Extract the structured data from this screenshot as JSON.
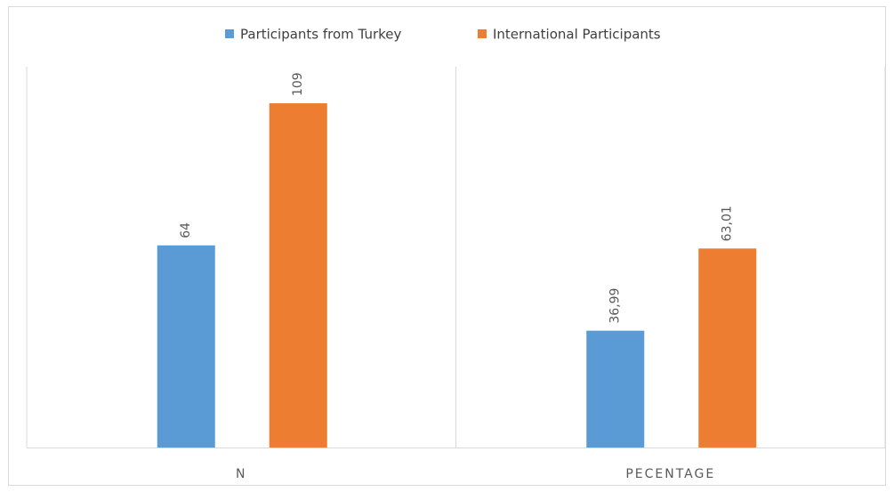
{
  "chart_data": {
    "type": "bar",
    "categories": [
      "N",
      "PECENTAGE"
    ],
    "series": [
      {
        "name": "Participants from Turkey",
        "color": "#5b9bd5",
        "values": [
          64,
          36.99
        ],
        "value_labels": [
          "64",
          "36,99"
        ]
      },
      {
        "name": "International Participants",
        "color": "#ed7d31",
        "values": [
          109,
          63.01
        ],
        "value_labels": [
          "109",
          "63,01"
        ]
      }
    ],
    "ylim": [
      0,
      120
    ],
    "legend": "top"
  }
}
